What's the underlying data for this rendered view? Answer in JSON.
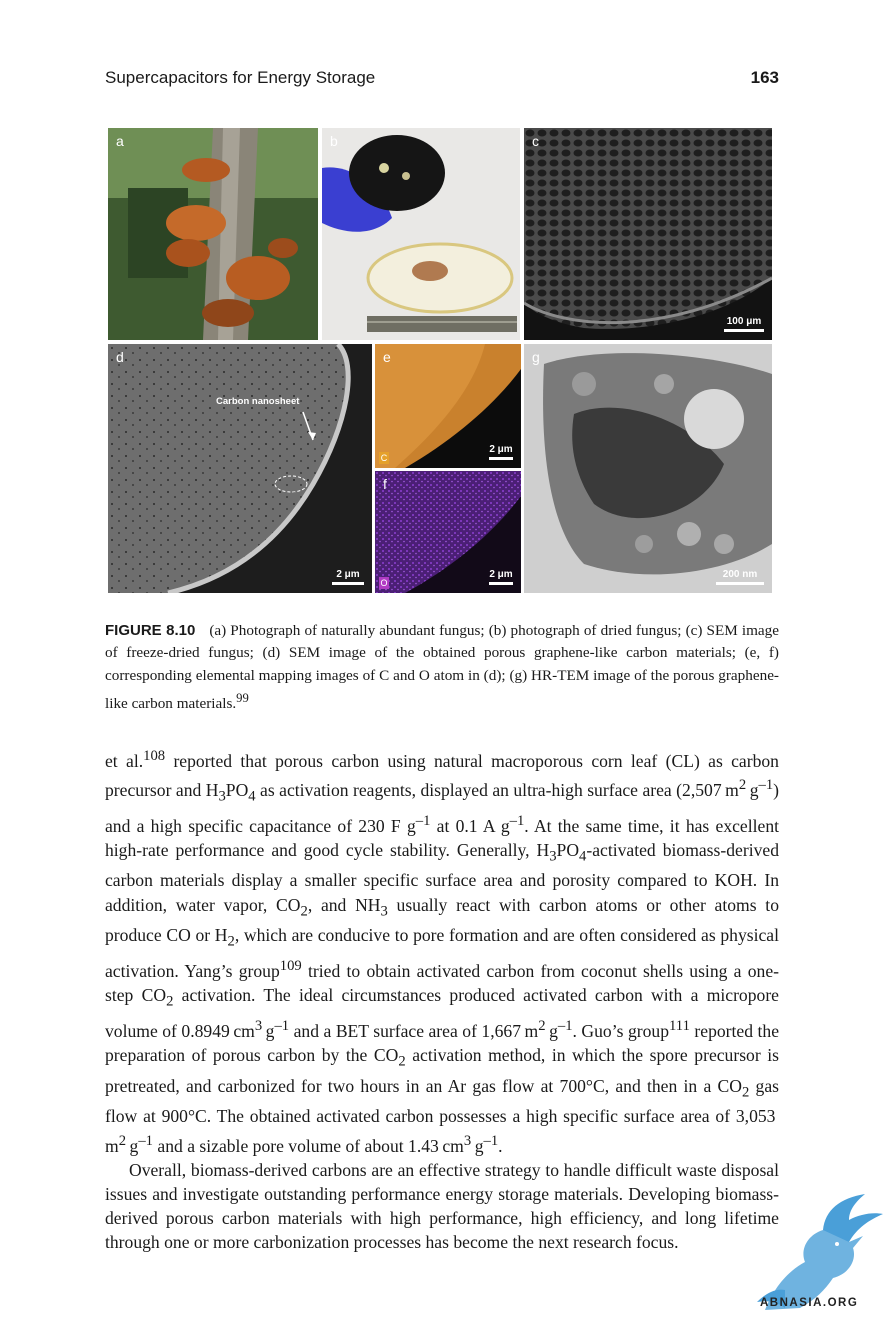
{
  "header": {
    "running_title": "Supercapacitors for Energy Storage",
    "page_number": "163"
  },
  "figure": {
    "panels": {
      "a": {
        "label": "a"
      },
      "b": {
        "label": "b"
      },
      "c": {
        "label": "c",
        "scale": "100 μm"
      },
      "d": {
        "label": "d",
        "scale": "2 μm",
        "annotation": "Carbon nanosheet"
      },
      "e": {
        "label": "e",
        "scale": "2 μm",
        "element": "C"
      },
      "f": {
        "label": "f",
        "scale": "2 μm",
        "element": "O"
      },
      "g": {
        "label": "g",
        "scale": "200 nm"
      }
    },
    "caption_label": "FIGURE 8.10",
    "caption_text": "(a) Photograph of naturally abundant fungus; (b) photograph of dried fungus; (c) SEM image of freeze-dried fungus; (d) SEM image of the obtained porous graphene-like carbon materials; (e, f) corresponding elemental mapping images of C and O atom in (d); (g) HR-TEM image of the porous graphene-like carbon materials.",
    "caption_ref": "99"
  },
  "body": {
    "p1": {
      "s01": "et al.",
      "r108": "108",
      "s02": " reported that porous carbon using natural macroporous corn leaf (CL) as carbon precursor and H",
      "sub3a": "3",
      "s03": "PO",
      "sub4a": "4",
      "s04": " as activation reagents, displayed an ultra-high surface area (2,507 m",
      "sup2a": "2",
      "s05": " g",
      "supm1a": "–1",
      "s06": ") and a high specific capacitance of 230 F g",
      "supm1b": "–1",
      "s07": " at 0.1 A g",
      "supm1c": "–1",
      "s08": ". At the same time, it has excellent high-rate performance and good cycle stability. Generally, H",
      "sub3b": "3",
      "s09": "PO",
      "sub4b": "4",
      "s10": "-activated biomass-derived carbon materials display a smaller specific surface area and porosity compared to KOH. In addition, water vapor, CO",
      "sub2a": "2",
      "s11": ", and NH",
      "sub3c": "3",
      "s12": " usually react with carbon atoms or other atoms to produce CO or H",
      "sub2b": "2",
      "s13": ", which are conducive to pore formation and are often considered as physical activation. Yang’s group",
      "r109": "109",
      "s14": " tried to obtain activated carbon from coconut shells using a one-step CO",
      "sub2c": "2",
      "s15": " activation. The ideal circumstances produced activated carbon with a micropore volume of 0.8949 cm",
      "sup3a": "3",
      "s16": " g",
      "supm1d": "–1",
      "s17": " and a BET surface area of 1,667 m",
      "sup2b": "2",
      "s18": " g",
      "supm1e": "–1",
      "s19": ". Guo’s group",
      "r111": "111",
      "s20": " reported the preparation of porous carbon by the CO",
      "sub2d": "2",
      "s21": " activation method, in which the spore precursor is pretreated, and carbonized for two hours in an Ar gas flow at 700°C, and then in a CO",
      "sub2e": "2",
      "s22": " gas flow at 900°C. The obtained activated carbon possesses a high specific surface area of 3,053 m",
      "sup2c": "2",
      "s23": " g",
      "supm1f": "–1",
      "s24": " and a sizable pore volume of about 1.43 cm",
      "sup3b": "3",
      "s25": " g",
      "supm1g": "–1",
      "s26": "."
    },
    "p2": "Overall, biomass-derived carbons are an effective strategy to handle difficult waste disposal issues and investigate outstanding performance energy storage materials. Developing biomass-derived porous carbon materials with high performance, high efficiency, and long lifetime through one or more carbonization processes has become the next research focus."
  },
  "watermark": {
    "text": "ABNASIA.ORG"
  }
}
